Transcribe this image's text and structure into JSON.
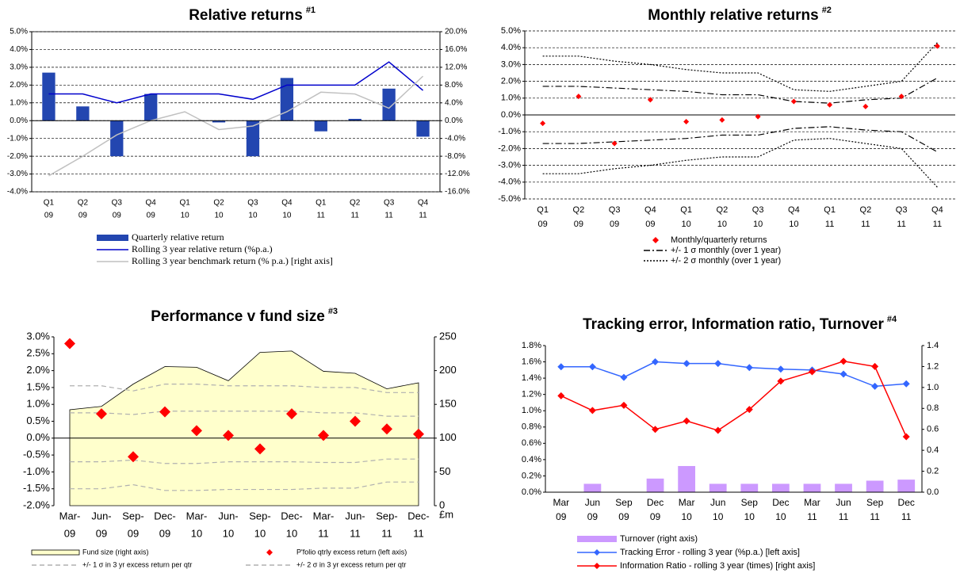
{
  "chart_data": [
    {
      "type": "combo",
      "title": "Relative returns",
      "title_note": "#1",
      "categories": [
        [
          "Q1",
          "09"
        ],
        [
          "Q2",
          "09"
        ],
        [
          "Q3",
          "09"
        ],
        [
          "Q4",
          "09"
        ],
        [
          "Q1",
          "10"
        ],
        [
          "Q2",
          "10"
        ],
        [
          "Q3",
          "10"
        ],
        [
          "Q4",
          "10"
        ],
        [
          "Q1",
          "11"
        ],
        [
          "Q2",
          "11"
        ],
        [
          "Q3",
          "11"
        ],
        [
          "Q4",
          "11"
        ]
      ],
      "ylim": [
        -4,
        5
      ],
      "yticks": [
        {
          "value": 5,
          "label": "5.0%"
        },
        {
          "value": 4,
          "label": "4.0%"
        },
        {
          "value": 3,
          "label": "3.0%"
        },
        {
          "value": 2,
          "label": "2.0%"
        },
        {
          "value": 1,
          "label": "1.0%"
        },
        {
          "value": 0,
          "label": "0.0%"
        },
        {
          "value": -1,
          "label": "-1.0%"
        },
        {
          "value": -2,
          "label": "-2.0%"
        },
        {
          "value": -3,
          "label": "-3.0%"
        },
        {
          "value": -4,
          "label": "-4.0%"
        }
      ],
      "y2lim": [
        -16,
        20
      ],
      "y2ticks": [
        {
          "value": 20,
          "label": "20.0%"
        },
        {
          "value": 16,
          "label": "16.0%"
        },
        {
          "value": 12,
          "label": "12.0%"
        },
        {
          "value": 8,
          "label": "8.0%"
        },
        {
          "value": 4,
          "label": "4.0%"
        },
        {
          "value": 0,
          "label": "0.0%"
        },
        {
          "value": -4,
          "label": "-4.0%"
        },
        {
          "value": -8,
          "label": "-8.0%"
        },
        {
          "value": -12,
          "label": "-12.0%"
        },
        {
          "value": -16,
          "label": "-16.0%"
        }
      ],
      "grid": true,
      "series": [
        {
          "name": "Quarterly relative return",
          "type": "bar",
          "color": "#2346b0",
          "values": [
            2.7,
            0.8,
            -2.0,
            1.5,
            0.0,
            -0.1,
            -2.0,
            2.4,
            -0.6,
            0.1,
            1.8,
            -0.9
          ]
        },
        {
          "name": "Rolling 3 year relative return (%p.a.)",
          "type": "line",
          "color": "#0000cc",
          "values": [
            1.5,
            1.5,
            1.0,
            1.5,
            1.5,
            1.5,
            1.2,
            2.0,
            2.0,
            2.0,
            3.3,
            1.7
          ]
        },
        {
          "name": "Rolling 3 year benchmark return (% p.a.) [right axis]",
          "type": "line",
          "axis": "y2",
          "color": "#c0c0c0",
          "values": [
            -12.4,
            -8,
            -3.2,
            0,
            2,
            -2,
            -1.2,
            2,
            6.4,
            6,
            2.8,
            10
          ]
        }
      ]
    },
    {
      "type": "combo",
      "title": "Monthly relative returns",
      "title_note": "#2",
      "categories": [
        [
          "Q1",
          "09"
        ],
        [
          "Q2",
          "09"
        ],
        [
          "Q3",
          "09"
        ],
        [
          "Q4",
          "09"
        ],
        [
          "Q1",
          "10"
        ],
        [
          "Q2",
          "10"
        ],
        [
          "Q3",
          "10"
        ],
        [
          "Q4",
          "10"
        ],
        [
          "Q1",
          "11"
        ],
        [
          "Q2",
          "11"
        ],
        [
          "Q3",
          "11"
        ],
        [
          "Q4",
          "11"
        ]
      ],
      "ylim": [
        -5,
        5
      ],
      "yticks": [
        {
          "value": 5,
          "label": "5.0%"
        },
        {
          "value": 4,
          "label": "4.0%"
        },
        {
          "value": 3,
          "label": "3.0%"
        },
        {
          "value": 2,
          "label": "2.0%"
        },
        {
          "value": 1,
          "label": "1.0%"
        },
        {
          "value": 0,
          "label": "0.0%"
        },
        {
          "value": -1,
          "label": "-1.0%"
        },
        {
          "value": -2,
          "label": "-2.0%"
        },
        {
          "value": -3,
          "label": "-3.0%"
        },
        {
          "value": -4,
          "label": "-4.0%"
        },
        {
          "value": -5,
          "label": "-5.0%"
        }
      ],
      "grid": true,
      "series": [
        {
          "name": "Monthly/quarterly returns",
          "type": "scatter",
          "color": "#ff0000",
          "values": [
            -0.5,
            1.1,
            -1.7,
            0.9,
            -0.4,
            -0.3,
            -0.1,
            0.8,
            0.6,
            0.5,
            1.1,
            4.1
          ]
        },
        {
          "name": "+/- 1 σ monthly (over 1 year)",
          "type": "line",
          "color": "#000000",
          "dash": "dashdot",
          "values": [
            1.7,
            1.7,
            1.6,
            1.5,
            1.4,
            1.2,
            1.2,
            0.8,
            0.7,
            0.9,
            1.0,
            2.2
          ],
          "lower": [
            -1.7,
            -1.7,
            -1.6,
            -1.5,
            -1.4,
            -1.2,
            -1.2,
            -0.8,
            -0.7,
            -0.9,
            -1.0,
            -2.2
          ]
        },
        {
          "name": "+/- 2 σ monthly (over 1 year)",
          "type": "line",
          "color": "#000000",
          "dash": "dotted",
          "values": [
            3.5,
            3.5,
            3.2,
            3.0,
            2.7,
            2.5,
            2.5,
            1.5,
            1.4,
            1.7,
            2.0,
            4.3
          ],
          "lower": [
            -3.5,
            -3.5,
            -3.2,
            -3.0,
            -2.7,
            -2.5,
            -2.5,
            -1.5,
            -1.4,
            -1.7,
            -2.0,
            -4.3
          ]
        }
      ]
    },
    {
      "type": "combo",
      "title": "Performance v fund size",
      "title_note": "#3",
      "categories": [
        [
          "Mar-",
          "09"
        ],
        [
          "Jun-",
          "09"
        ],
        [
          "Sep-",
          "09"
        ],
        [
          "Dec-",
          "09"
        ],
        [
          "Mar-",
          "10"
        ],
        [
          "Jun-",
          "10"
        ],
        [
          "Sep-",
          "10"
        ],
        [
          "Dec-",
          "10"
        ],
        [
          "Mar-",
          "11"
        ],
        [
          "Jun-",
          "11"
        ],
        [
          "Sep-",
          "11"
        ],
        [
          "Dec-",
          "11"
        ]
      ],
      "ylim": [
        -2,
        3
      ],
      "yticks": [
        {
          "value": 3,
          "label": "3.0%"
        },
        {
          "value": 2.5,
          "label": "2.5%"
        },
        {
          "value": 2,
          "label": "2.0%"
        },
        {
          "value": 1.5,
          "label": "1.5%"
        },
        {
          "value": 1,
          "label": "1.0%"
        },
        {
          "value": 0.5,
          "label": "0.5%"
        },
        {
          "value": 0,
          "label": "0.0%"
        },
        {
          "value": -0.5,
          "label": "-0.5%"
        },
        {
          "value": -1,
          "label": "-1.0%"
        },
        {
          "value": -1.5,
          "label": "-1.5%"
        },
        {
          "value": -2,
          "label": "-2.0%"
        }
      ],
      "y2lim": [
        0,
        250
      ],
      "y2ticks": [
        0,
        50,
        100,
        150,
        200,
        250
      ],
      "y2_unit": "£m",
      "grid": false,
      "series": [
        {
          "name": "Fund size (right axis)",
          "type": "area",
          "axis": "y2",
          "color": "#ffffcc",
          "values": [
            142,
            147,
            180,
            206,
            205,
            185,
            227,
            229,
            199,
            196,
            173,
            182
          ]
        },
        {
          "name": "P'folio qtrly excess return (left axis)",
          "type": "scatter",
          "color": "#ff0000",
          "values": [
            2.8,
            0.72,
            -0.55,
            0.78,
            0.22,
            0.08,
            -0.32,
            0.72,
            0.08,
            0.5,
            0.27,
            0.12
          ]
        },
        {
          "name": "+/- 1 σ in 3 yr excess return per qtr",
          "type": "line",
          "color": "#b0b0b0",
          "dash": "dashed",
          "values": [
            0.75,
            0.75,
            0.7,
            0.8,
            0.8,
            0.8,
            0.8,
            0.8,
            0.75,
            0.75,
            0.65,
            0.65
          ],
          "lower": [
            -0.7,
            -0.7,
            -0.65,
            -0.75,
            -0.75,
            -0.7,
            -0.7,
            -0.7,
            -0.72,
            -0.72,
            -0.62,
            -0.62
          ]
        },
        {
          "name": "+/- 2 σ in 3 yr excess return per qtr",
          "type": "line",
          "color": "#b0b0b0",
          "dash": "dashed",
          "values": [
            1.55,
            1.55,
            1.4,
            1.6,
            1.6,
            1.55,
            1.55,
            1.55,
            1.5,
            1.5,
            1.35,
            1.35
          ],
          "lower": [
            -1.5,
            -1.5,
            -1.38,
            -1.55,
            -1.55,
            -1.52,
            -1.52,
            -1.52,
            -1.48,
            -1.48,
            -1.3,
            -1.3
          ]
        }
      ]
    },
    {
      "type": "combo",
      "title": "Tracking error, Information ratio, Turnover",
      "title_note": "#4",
      "categories": [
        [
          "Mar",
          "09"
        ],
        [
          "Jun",
          "09"
        ],
        [
          "Sep",
          "09"
        ],
        [
          "Dec",
          "09"
        ],
        [
          "Mar",
          "10"
        ],
        [
          "Jun",
          "10"
        ],
        [
          "Sep",
          "10"
        ],
        [
          "Dec",
          "10"
        ],
        [
          "Mar",
          "11"
        ],
        [
          "Jun",
          "11"
        ],
        [
          "Sep",
          "11"
        ],
        [
          "Dec",
          "11"
        ]
      ],
      "ylim": [
        0,
        1.8
      ],
      "yticks": [
        {
          "value": 1.8,
          "label": "1.8%"
        },
        {
          "value": 1.6,
          "label": "1.6%"
        },
        {
          "value": 1.4,
          "label": "1.4%"
        },
        {
          "value": 1.2,
          "label": "1.2%"
        },
        {
          "value": 1,
          "label": "1.0%"
        },
        {
          "value": 0.8,
          "label": "0.8%"
        },
        {
          "value": 0.6,
          "label": "0.6%"
        },
        {
          "value": 0.4,
          "label": "0.4%"
        },
        {
          "value": 0.2,
          "label": "0.2%"
        },
        {
          "value": 0,
          "label": "0.0%"
        }
      ],
      "y2lim": [
        0,
        1.4
      ],
      "y2ticks": [
        1.4,
        1.2,
        {
          "value": 1,
          "label": "1.0"
        },
        0.8,
        0.6,
        0.4,
        0.2,
        {
          "value": 0,
          "label": "0.0"
        }
      ],
      "grid": false,
      "series": [
        {
          "name": "Turnover (right axis)",
          "type": "bar",
          "axis": "y2",
          "color": "#cc99ff",
          "values": [
            0,
            0.08,
            0,
            0.13,
            0.25,
            0.08,
            0.08,
            0.08,
            0.08,
            0.08,
            0.11,
            0.12
          ]
        },
        {
          "name": "Tracking Error - rolling 3 year (%p.a.) [left axis]",
          "type": "line",
          "marker": true,
          "color": "#3366ff",
          "values": [
            1.54,
            1.54,
            1.41,
            1.6,
            1.58,
            1.58,
            1.53,
            1.51,
            1.5,
            1.45,
            1.3,
            1.33
          ]
        },
        {
          "name": "Information Ratio - rolling 3 year (times) [right axis]",
          "type": "line",
          "marker": true,
          "axis": "y2",
          "color": "#ff0000",
          "values": [
            0.92,
            0.78,
            0.83,
            0.6,
            0.68,
            0.59,
            0.79,
            1.06,
            1.15,
            1.25,
            1.2,
            0.53
          ]
        }
      ]
    }
  ]
}
